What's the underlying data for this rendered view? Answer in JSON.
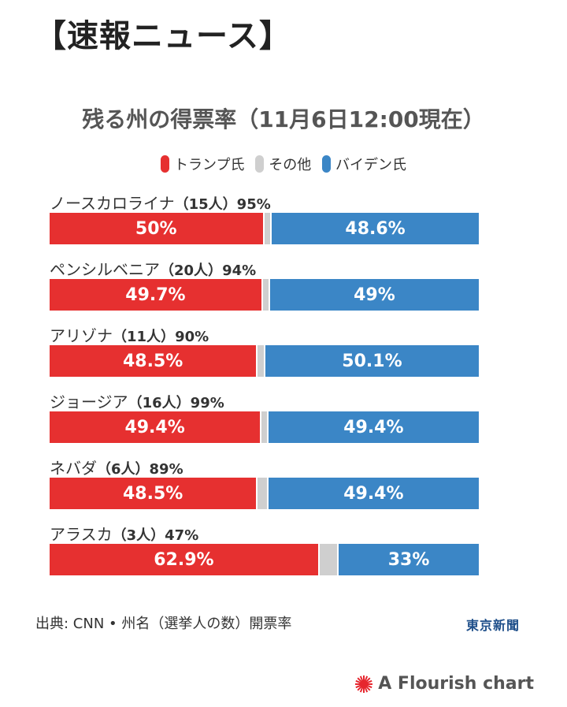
{
  "headline": "【速報ニュース】",
  "legend_items": [
    {
      "label": "トランプ氏",
      "color": "#e63030"
    },
    {
      "label": "その他",
      "color": "#cfcfcf"
    },
    {
      "label": "バイデン氏",
      "color": "#3b86c6"
    }
  ],
  "chart_data": {
    "type": "bar",
    "stacked": true,
    "orientation": "horizontal",
    "title": "残る州の得票率（11月6日12:00現在）",
    "xlim": [
      0,
      100
    ],
    "categories": [
      "ノースカロライナ",
      "ペンシルベニア",
      "アリゾナ",
      "ジョージア",
      "ネバダ",
      "アラスカ"
    ],
    "electors_labels": [
      "（15人）",
      "（20人）",
      "（11人）",
      "（16人）",
      "（6人）",
      "（3人）"
    ],
    "counted_labels": [
      "95%",
      "94%",
      "90%",
      "99%",
      "89%",
      "47%"
    ],
    "series": [
      {
        "name": "トランプ氏",
        "color": "#e63030",
        "values": [
          50,
          49.7,
          48.5,
          49.4,
          48.5,
          62.9
        ],
        "labels": [
          "50%",
          "49.7%",
          "48.5%",
          "49.4%",
          "48.5%",
          "62.9%"
        ]
      },
      {
        "name": "その他",
        "color": "#cfcfcf",
        "values": [
          1.4,
          1.3,
          1.4,
          1.2,
          2.1,
          4.1
        ],
        "labels": [
          "",
          "",
          "",
          "",
          "",
          ""
        ]
      },
      {
        "name": "バイデン氏",
        "color": "#3b86c6",
        "values": [
          48.6,
          49,
          50.1,
          49.4,
          49.4,
          33
        ],
        "labels": [
          "48.6%",
          "49%",
          "50.1%",
          "49.4%",
          "49.4%",
          "33%"
        ]
      }
    ]
  },
  "source_text": "出典: CNN • 州名（選挙人の数）開票率",
  "publisher_logo": "東京新聞",
  "credit_text": "A Flourish chart"
}
